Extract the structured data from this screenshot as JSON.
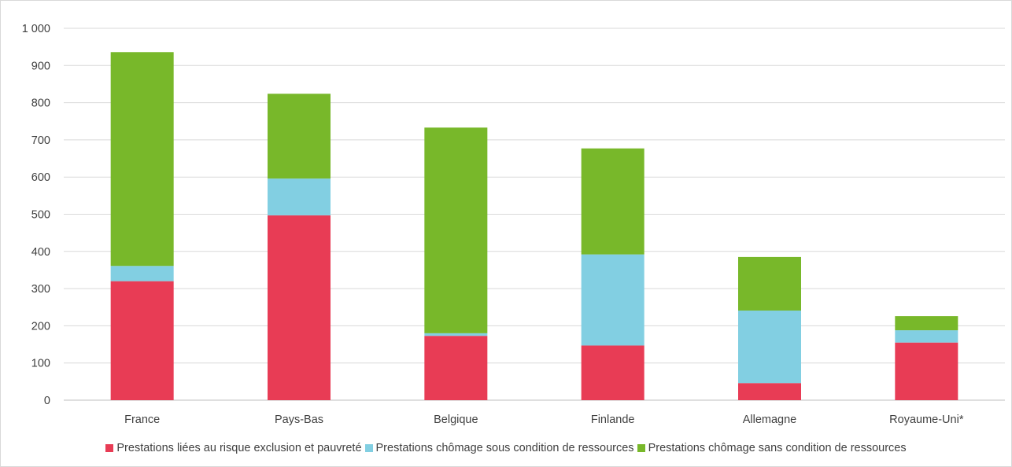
{
  "chart_data": {
    "type": "bar",
    "stacked": true,
    "categories": [
      "France",
      "Pays-Bas",
      "Belgique",
      "Finlande",
      "Allemagne",
      "Royaume-Uni*"
    ],
    "series": [
      {
        "name": "Prestations liées au risque exclusion et pauvreté",
        "color": "#e83c55",
        "values": [
          320,
          497,
          173,
          147,
          46,
          155
        ]
      },
      {
        "name": "Prestations chômage sous condition de ressources",
        "color": "#82cfe2",
        "values": [
          41,
          99,
          7,
          245,
          195,
          33
        ]
      },
      {
        "name": "Prestations chômage sans condition de ressources",
        "color": "#78b82a",
        "values": [
          575,
          228,
          553,
          285,
          144,
          38
        ]
      }
    ],
    "ylim": [
      0,
      1000
    ],
    "yticks": [
      0,
      100,
      200,
      300,
      400,
      500,
      600,
      700,
      800,
      900,
      1000
    ],
    "ytick_labels": [
      "0",
      "100",
      "200",
      "300",
      "400",
      "500",
      "600",
      "700",
      "800",
      "900",
      "1 000"
    ],
    "grid": true,
    "legend_position": "bottom",
    "title": "",
    "xlabel": "",
    "ylabel": ""
  }
}
